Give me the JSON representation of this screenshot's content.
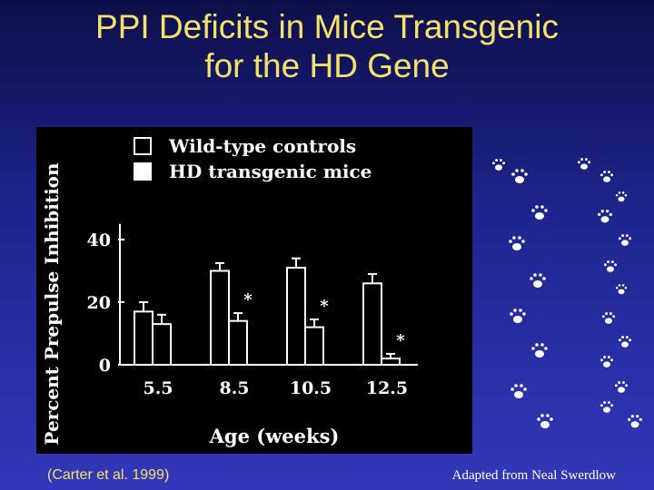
{
  "slide": {
    "title_line1": "PPI Deficits in Mice Transgenic",
    "title_line2": "for the HD Gene",
    "citation": "(Carter et al. 1999)",
    "credit": "Adapted from  Neal Swerdlow"
  },
  "colors": {
    "title": "#f4e26a",
    "chart_fg": "#ffffff",
    "chart_bg": "#000000"
  },
  "chart_data": {
    "type": "bar",
    "categories": [
      "5.5",
      "8.5",
      "10.5",
      "12.5"
    ],
    "series": [
      {
        "name": "Wild-type controls",
        "values": [
          17,
          30,
          31,
          26
        ],
        "errors": [
          3,
          2.5,
          3,
          3
        ],
        "fill": "none"
      },
      {
        "name": "HD transgenic mice",
        "values": [
          13,
          14,
          12,
          2
        ],
        "errors": [
          3,
          2.5,
          2.5,
          1.5
        ],
        "fill": "solid"
      }
    ],
    "significance": [
      "",
      "*",
      "*",
      "*"
    ],
    "xlabel": "Age (weeks)",
    "ylabel": "Percent Prepulse Inhibition",
    "yticks": [
      0,
      20,
      40
    ],
    "ylim": [
      0,
      45
    ],
    "legend_position": "top-left",
    "grid": false
  },
  "footprints": {
    "icon": "mouse-footprint-icon"
  }
}
